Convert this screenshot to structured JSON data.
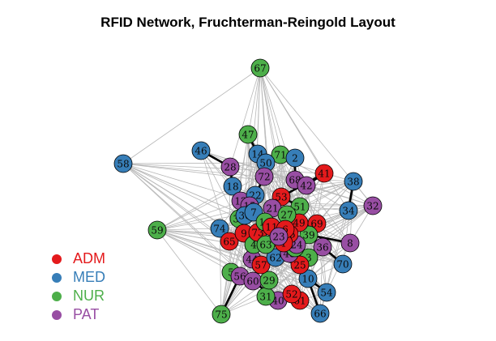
{
  "title": "RFID Network, Fruchterman-Reingold Layout",
  "legend": [
    {
      "label": "ADM",
      "color": "#e41a1c"
    },
    {
      "label": "MED",
      "color": "#377eb8"
    },
    {
      "label": "NUR",
      "color": "#4daf4a"
    },
    {
      "label": "PAT",
      "color": "#984ea3"
    }
  ],
  "colors": {
    "edge": "#b8b8b8",
    "strong_edge": "#000000",
    "node_border": "#000000"
  },
  "nodes": [
    {
      "id": "67",
      "role": "NUR"
    },
    {
      "id": "58",
      "role": "MED"
    },
    {
      "id": "59",
      "role": "NUR"
    },
    {
      "id": "47",
      "role": "NUR"
    },
    {
      "id": "46",
      "role": "MED"
    },
    {
      "id": "14",
      "role": "MED"
    },
    {
      "id": "71",
      "role": "NUR"
    },
    {
      "id": "2",
      "role": "MED"
    },
    {
      "id": "50",
      "role": "MED"
    },
    {
      "id": "28",
      "role": "PAT"
    },
    {
      "id": "72",
      "role": "PAT"
    },
    {
      "id": "68",
      "role": "PAT"
    },
    {
      "id": "42",
      "role": "PAT"
    },
    {
      "id": "41",
      "role": "ADM"
    },
    {
      "id": "38",
      "role": "MED"
    },
    {
      "id": "18",
      "role": "MED"
    },
    {
      "id": "12",
      "role": "PAT"
    },
    {
      "id": "22",
      "role": "MED"
    },
    {
      "id": "53",
      "role": "ADM"
    },
    {
      "id": "34",
      "role": "MED"
    },
    {
      "id": "32",
      "role": "PAT"
    },
    {
      "id": "74",
      "role": "MED"
    },
    {
      "id": "35",
      "role": "NUR"
    },
    {
      "id": "27",
      "role": "NUR"
    },
    {
      "id": "51",
      "role": "NUR"
    },
    {
      "id": "49",
      "role": "ADM"
    },
    {
      "id": "69",
      "role": "ADM"
    },
    {
      "id": "65",
      "role": "ADM"
    },
    {
      "id": "9",
      "role": "ADM"
    },
    {
      "id": "73",
      "role": "ADM"
    },
    {
      "id": "39",
      "role": "NUR"
    },
    {
      "id": "36",
      "role": "PAT"
    },
    {
      "id": "8",
      "role": "PAT"
    },
    {
      "id": "4",
      "role": "NUR"
    },
    {
      "id": "63",
      "role": "NUR"
    },
    {
      "id": "48",
      "role": "PAT"
    },
    {
      "id": "3",
      "role": "NUR"
    },
    {
      "id": "70",
      "role": "MED"
    },
    {
      "id": "44",
      "role": "PAT"
    },
    {
      "id": "5",
      "role": "NUR"
    },
    {
      "id": "57",
      "role": "ADM"
    },
    {
      "id": "62",
      "role": "MED"
    },
    {
      "id": "25",
      "role": "ADM"
    },
    {
      "id": "56",
      "role": "PAT"
    },
    {
      "id": "60",
      "role": "PAT"
    },
    {
      "id": "29",
      "role": "NUR"
    },
    {
      "id": "10",
      "role": "MED"
    },
    {
      "id": "54",
      "role": "MED"
    },
    {
      "id": "31",
      "role": "NUR"
    },
    {
      "id": "40",
      "role": "PAT"
    },
    {
      "id": "52",
      "role": "ADM"
    },
    {
      "id": "61",
      "role": "ADM"
    },
    {
      "id": "66",
      "role": "MED"
    },
    {
      "id": "75",
      "role": "NUR"
    },
    {
      "id": "11",
      "role": "ADM"
    },
    {
      "id": "23",
      "role": "PAT"
    },
    {
      "id": "45",
      "role": "ADM"
    },
    {
      "id": "7",
      "role": "MED"
    },
    {
      "id": "21",
      "role": "PAT"
    },
    {
      "id": "1",
      "role": "ADM"
    },
    {
      "id": "15",
      "role": "PAT"
    },
    {
      "id": "30",
      "role": "MED"
    },
    {
      "id": "16",
      "role": "NUR"
    },
    {
      "id": "24",
      "role": "PAT"
    },
    {
      "id": "6",
      "role": "ADM"
    },
    {
      "id": "13",
      "role": "NUR"
    }
  ]
}
